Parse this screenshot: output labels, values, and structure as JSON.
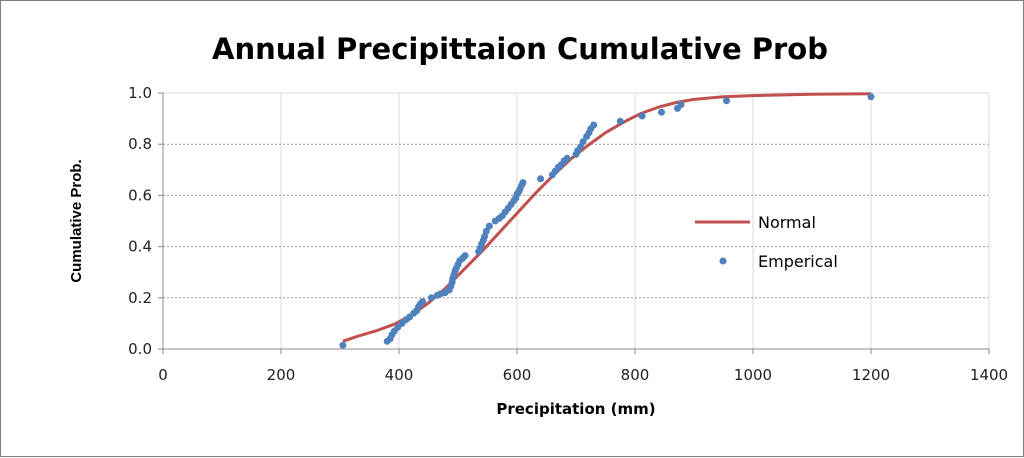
{
  "chart_data": {
    "type": "scatter",
    "title": "Annual Precipittaion Cumulative Prob",
    "xlabel": "Precipitation (mm)",
    "ylabel": "Cumulative Prob.",
    "xlim": [
      0,
      1400
    ],
    "ylim": [
      0,
      1.0
    ],
    "xticks": [
      0,
      200,
      400,
      600,
      800,
      1000,
      1200,
      1400
    ],
    "xtick_labels": [
      "0",
      "200",
      "400",
      "600",
      "800",
      "1000",
      "1200",
      "1400"
    ],
    "yticks": [
      0,
      0.2,
      0.4,
      0.6,
      0.8,
      1.0
    ],
    "ytick_labels": [
      "0.0",
      "0.2",
      "0.4",
      "0.6",
      "0.8",
      "1.0"
    ],
    "grid": true,
    "legend_position": "right",
    "series": [
      {
        "name": "Normal",
        "kind": "line",
        "color": "#c0504d",
        "x": [
          305,
          330,
          360,
          390,
          420,
          450,
          480,
          510,
          540,
          570,
          600,
          630,
          660,
          690,
          720,
          750,
          780,
          810,
          840,
          870,
          900,
          950,
          1000,
          1100,
          1200
        ],
        "y": [
          0.03,
          0.05,
          0.07,
          0.095,
          0.13,
          0.18,
          0.24,
          0.31,
          0.38,
          0.455,
          0.53,
          0.605,
          0.675,
          0.74,
          0.795,
          0.845,
          0.885,
          0.92,
          0.945,
          0.963,
          0.975,
          0.985,
          0.99,
          0.995,
          0.997
        ]
      },
      {
        "name": "Emperical",
        "kind": "scatter",
        "color": "#4f81bd",
        "x": [
          305,
          380,
          385,
          388,
          392,
          398,
          405,
          412,
          418,
          425,
          430,
          433,
          436,
          440,
          455,
          465,
          470,
          478,
          485,
          488,
          490,
          491,
          493,
          495,
          497,
          500,
          503,
          508,
          512,
          535,
          538,
          540,
          543,
          545,
          548,
          553,
          563,
          570,
          575,
          580,
          585,
          590,
          595,
          598,
          600,
          603,
          605,
          608,
          610,
          640,
          660,
          665,
          670,
          675,
          680,
          685,
          700,
          703,
          708,
          712,
          718,
          722,
          725,
          730,
          775,
          812,
          845,
          872,
          878,
          955,
          1200
        ],
        "y": [
          0.015,
          0.03,
          0.04,
          0.055,
          0.07,
          0.085,
          0.1,
          0.115,
          0.125,
          0.14,
          0.15,
          0.165,
          0.175,
          0.185,
          0.2,
          0.21,
          0.215,
          0.22,
          0.23,
          0.245,
          0.26,
          0.275,
          0.29,
          0.305,
          0.315,
          0.33,
          0.345,
          0.355,
          0.365,
          0.38,
          0.395,
          0.41,
          0.425,
          0.44,
          0.46,
          0.48,
          0.5,
          0.51,
          0.52,
          0.535,
          0.55,
          0.565,
          0.58,
          0.59,
          0.605,
          0.615,
          0.625,
          0.64,
          0.65,
          0.665,
          0.68,
          0.695,
          0.71,
          0.72,
          0.735,
          0.745,
          0.76,
          0.775,
          0.79,
          0.81,
          0.83,
          0.845,
          0.86,
          0.875,
          0.89,
          0.91,
          0.925,
          0.94,
          0.955,
          0.97,
          0.985
        ]
      }
    ]
  }
}
